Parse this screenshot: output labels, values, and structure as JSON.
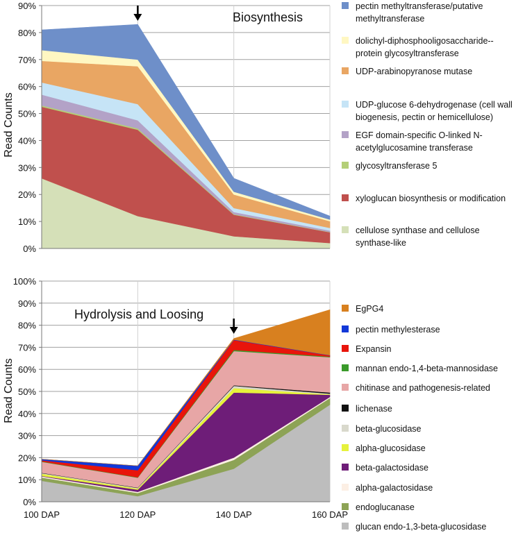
{
  "chart_data": [
    {
      "type": "area",
      "stacked": true,
      "title": "Biosynthesis",
      "ylabel": "Read Counts",
      "ylim": [
        0,
        90
      ],
      "y_ticks": [
        "0%",
        "10%",
        "20%",
        "30%",
        "40%",
        "50%",
        "60%",
        "70%",
        "80%",
        "90%"
      ],
      "y_tick_values": [
        0,
        10,
        20,
        30,
        40,
        50,
        60,
        70,
        80,
        90
      ],
      "categories": [
        "100 DAP",
        "120 DAP",
        "140 DAP",
        "160 DAP"
      ],
      "arrow_at": "120 DAP",
      "series": [
        {
          "name": "cellulose synthase and cellulose synthase-like",
          "color": "#d5e0b8",
          "values": [
            26,
            12,
            4.5,
            2
          ]
        },
        {
          "name": "xyloglucan biosynthesis or modification",
          "color": "#c0504d",
          "values": [
            26.5,
            32,
            8,
            4
          ]
        },
        {
          "name": "glycosyltransferase 5",
          "color": "#b4cf78",
          "values": [
            0.5,
            0.5,
            0.2,
            0.1
          ]
        },
        {
          "name": "EGF domain-specific O-linked N-acetylglucosamine transferase",
          "color": "#b3a2c7",
          "values": [
            4,
            3,
            0.8,
            0.5
          ]
        },
        {
          "name": "UDP-glucose 6-dehydrogenase (cell wall biogenesis, pectin or hemicellulose)",
          "color": "#c6e4f6",
          "values": [
            4.5,
            6,
            1.5,
            1
          ]
        },
        {
          "name": "UDP-arabinopyranose mutase",
          "color": "#e9a663",
          "values": [
            8,
            14,
            5,
            2.5
          ]
        },
        {
          "name": "dolichyl-diphosphooligosaccharide--protein glycosyltransferase",
          "color": "#fff7c2",
          "values": [
            4,
            2.5,
            1,
            0.6
          ]
        },
        {
          "name": "pectin methyltransferase/putative methyltransferase",
          "color": "#6e8fc9",
          "values": [
            7.5,
            13,
            5,
            1.3
          ]
        }
      ]
    },
    {
      "type": "area",
      "stacked": true,
      "title": "Hydrolysis and Loosing",
      "ylabel": "Read Counts",
      "ylim": [
        0,
        100
      ],
      "y_ticks": [
        "0%",
        "10%",
        "20%",
        "30%",
        "40%",
        "50%",
        "60%",
        "70%",
        "80%",
        "90%",
        "100%"
      ],
      "y_tick_values": [
        0,
        10,
        20,
        30,
        40,
        50,
        60,
        70,
        80,
        90,
        100
      ],
      "categories": [
        "100 DAP",
        "120 DAP",
        "140 DAP",
        "160 DAP"
      ],
      "arrow_at": "140 DAP",
      "series": [
        {
          "name": "glucan endo-1,3-beta-glucosidase",
          "color": "#bdbdbd",
          "values": [
            9.5,
            2.5,
            15,
            44
          ]
        },
        {
          "name": "endoglucanase",
          "color": "#8da356",
          "values": [
            1.5,
            1.5,
            4,
            3
          ]
        },
        {
          "name": "alpha-galactosidase",
          "color": "#fcefe4",
          "values": [
            0.5,
            0.5,
            1,
            0.5
          ]
        },
        {
          "name": "beta-galactosidase",
          "color": "#6e1d78",
          "values": [
            0.2,
            1,
            29.5,
            1
          ]
        },
        {
          "name": "alpha-glucosidase",
          "color": "#e6f23c",
          "values": [
            1,
            0.5,
            2,
            0.2
          ]
        },
        {
          "name": "beta-glucosidase",
          "color": "#d9d9cc",
          "values": [
            0.3,
            0.3,
            1,
            0.3
          ]
        },
        {
          "name": "lichenase",
          "color": "#111111",
          "values": [
            0.1,
            0.1,
            0.3,
            0.5
          ]
        },
        {
          "name": "chitinase and pathogenesis-related",
          "color": "#e7a6a6",
          "values": [
            5,
            4.5,
            15.5,
            16
          ]
        },
        {
          "name": "mannan endo-1,4-beta-mannosidase",
          "color": "#3a9a2a",
          "values": [
            0.2,
            0.2,
            0.5,
            0.3
          ]
        },
        {
          "name": "Expansin",
          "color": "#e8150b",
          "values": [
            0.5,
            3.2,
            4.5,
            0.5
          ]
        },
        {
          "name": "pectin methylesterase",
          "color": "#1238d8",
          "values": [
            0.5,
            2,
            0.2,
            0.1
          ]
        },
        {
          "name": "EgPG4",
          "color": "#d8801f",
          "values": [
            0,
            0,
            0.5,
            20.6
          ]
        }
      ]
    }
  ]
}
